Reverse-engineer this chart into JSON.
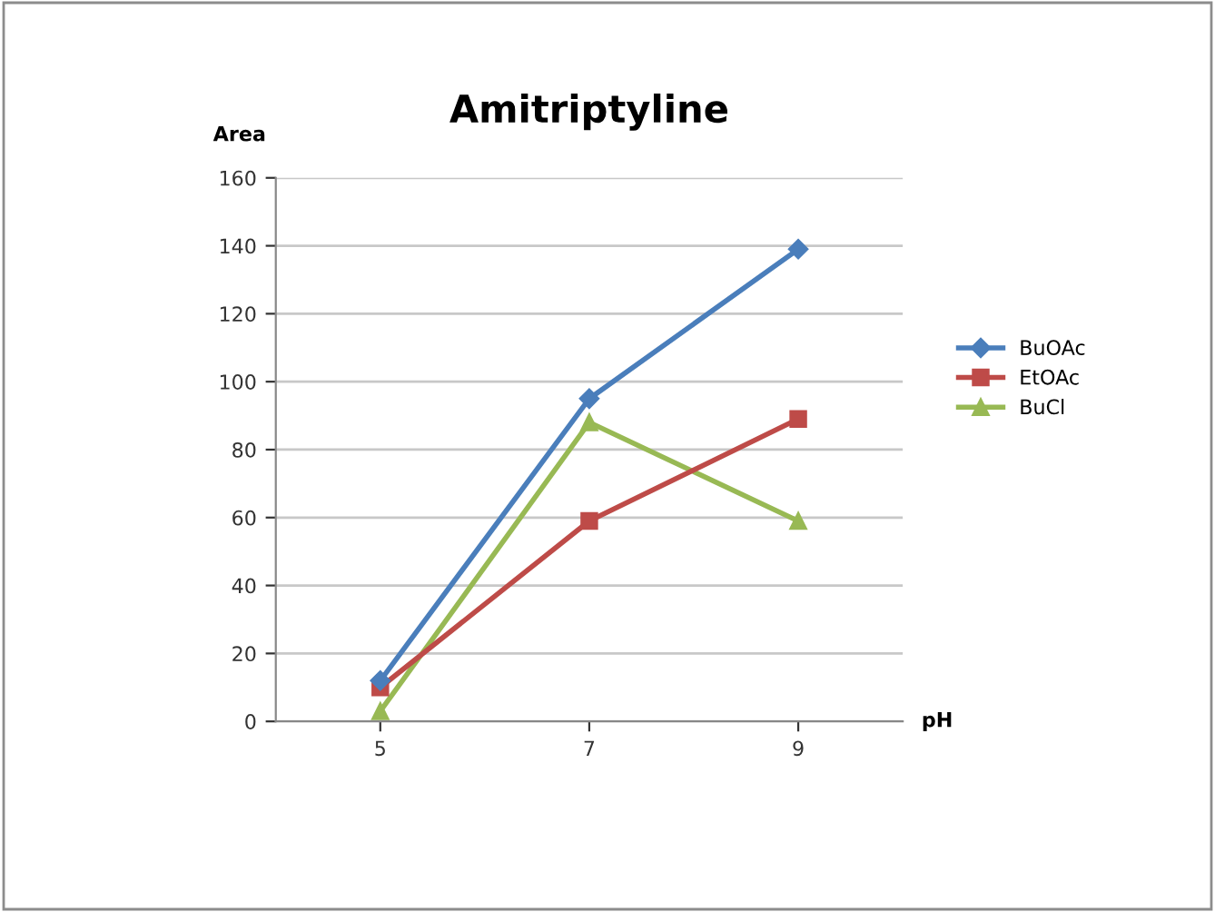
{
  "chart_data": {
    "type": "line",
    "title": "Amitriptyline",
    "ylabel": "Area",
    "xlabel": "pH",
    "categories": [
      "5",
      "7",
      "9"
    ],
    "series": [
      {
        "name": "BuOAc",
        "color": "#4a7ebb",
        "marker": "diamond",
        "values": [
          12,
          95,
          139
        ]
      },
      {
        "name": "EtOAc",
        "color": "#be4b48",
        "marker": "square",
        "values": [
          10,
          59,
          89
        ]
      },
      {
        "name": "BuCl",
        "color": "#98b954",
        "marker": "triangle",
        "values": [
          3,
          88,
          59
        ]
      }
    ],
    "ylim": [
      0,
      160
    ],
    "yticks": [
      0,
      20,
      40,
      60,
      80,
      100,
      120,
      140,
      160
    ],
    "grid": "y",
    "legend": "right"
  }
}
